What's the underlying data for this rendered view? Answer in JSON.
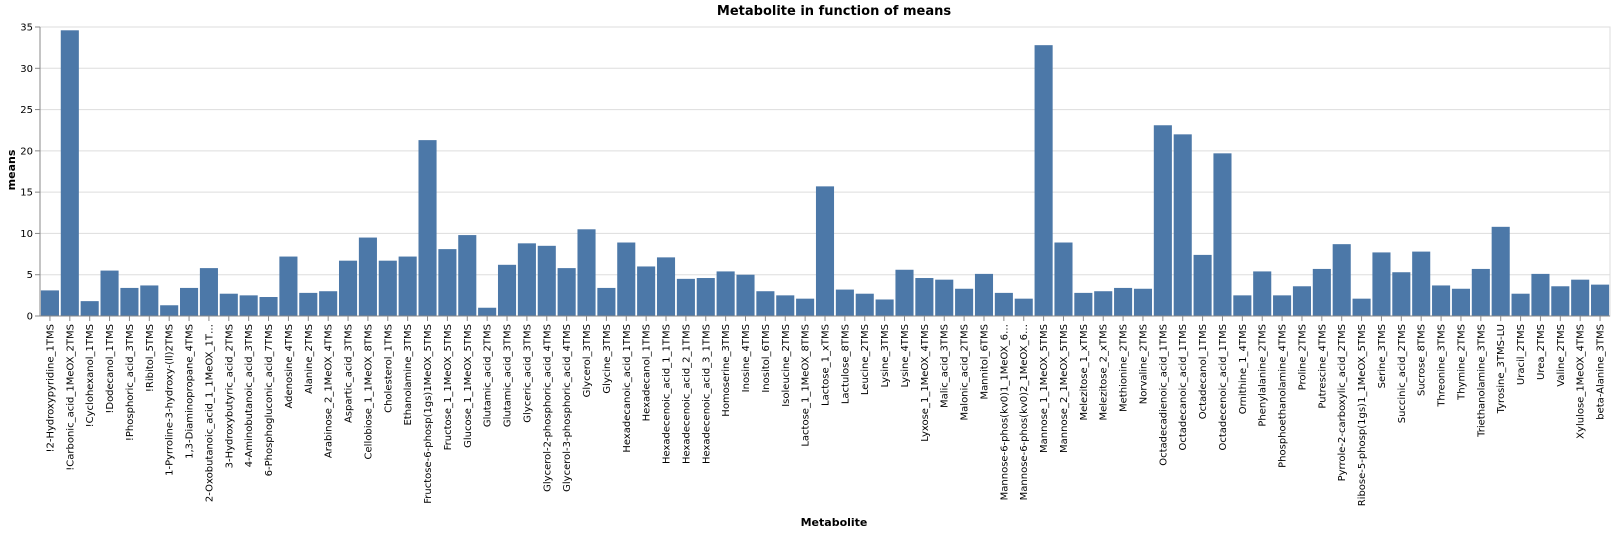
{
  "chart_data": {
    "type": "bar",
    "title": "Metabolite in function of means",
    "xlabel": "Metabolite",
    "ylabel": "means",
    "ylim": [
      0,
      35
    ],
    "yticks": [
      0,
      5,
      10,
      15,
      20,
      25,
      30,
      35
    ],
    "grid": true,
    "bar_color": "#4c78a8",
    "categories": [
      "!2-Hydroxypyridine_1TMS",
      "!Carbonic_acid_1MeOX_2TMS",
      "!Cyclohexanol_1TMS",
      "!Dodecanol_1TMS",
      "!Phosphoric_acid_3TMS",
      "!Ribitol_5TMS",
      "1-Pyrroline-3-hydroxy-(ll)2TMS",
      "1,3-Diaminopropane_4TMS",
      "2-Oxobutanoic_acid_1_1MeOX_1T…",
      "3-Hydroxybutyric_acid_2TMS",
      "4-Aminobutanoic_acid_3TMS",
      "6-Phosphogluconic_acid_7TMS",
      "Adenosine_4TMS",
      "Alanine_2TMS",
      "Arabinose_2_1MeOX_4TMS",
      "Aspartic_acid_3TMS",
      "Cellobiose_1_1MeOX_8TMS",
      "Cholesterol_1TMS",
      "Ethanolamine_3TMS",
      "Fructose-6-phosp(1gs)1MeOX_5TMS",
      "Fructose_1_1MeOX_5TMS",
      "Glucose_1_1MeOX_5TMS",
      "Glutamic_acid_2TMS",
      "Glutamic_acid_3TMS",
      "Glyceric_acid_3TMS",
      "Glycerol-2-phosphoric_acid_4TMS",
      "Glycerol-3-phosphoric_acid_4TMS",
      "Glycerol_3TMS",
      "Glycine_3TMS",
      "Hexadecanoic_acid_1TMS",
      "Hexadecanol_1TMS",
      "Hexadecenoic_acid_1_1TMS",
      "Hexadecenoic_acid_2_1TMS",
      "Hexadecenoic_acid_3_1TMS",
      "Homoserine_3TMS",
      "Inosine_4TMS",
      "Inositol_6TMS",
      "Isoleucine_2TMS",
      "Lactose_1_1MeOX_8TMS",
      "Lactose_1_xTMS",
      "Lactulose_8TMS",
      "Leucine_2TMS",
      "Lysine_3TMS",
      "Lysine_4TMS",
      "Lyxose_1_1MeOX_4TMS",
      "Malic_acid_3TMS",
      "Malonic_acid_2TMS",
      "Mannitol_6TMS",
      "Mannose-6-phos(kv0)1_1MeOX_6…",
      "Mannose-6-phos(kv0)2_1MeOX_6…",
      "Mannose_1_1MeOX_5TMS",
      "Mannose_2_1MeOX_5TMS",
      "Melezitose_1_xTMS",
      "Melezitose_2_xTMS",
      "Methionine_2TMS",
      "Norvaline_2TMS",
      "Octadecadienoic_acid_1TMS",
      "Octadecanoic_acid_1TMS",
      "Octadecanol_1TMS",
      "Octadecenoic_acid_1TMS",
      "Ornithine_1_4TMS",
      "Phenylalanine_2TMS",
      "Phosphoethanolamine_4TMS",
      "Proline_2TMS",
      "Putrescine_4TMS",
      "Pyrrole-2-carboxylic_acid_2TMS",
      "Ribose-5-phosp(1gs)1_1MeOX_5TMS",
      "Serine_3TMS",
      "Succinic_acid_2TMS",
      "Sucrose_8TMS",
      "Threonine_3TMS",
      "Thymine_2TMS",
      "Triethanolamine_3TMS",
      "Tyrosine_3TMS-LU",
      "Uracil_2TMS",
      "Urea_2TMS",
      "Valine_2TMS",
      "Xylulose_1MeOX_4TMS",
      "beta-Alanine_3TMS"
    ],
    "values": [
      3.1,
      34.6,
      1.8,
      5.5,
      3.4,
      3.7,
      1.3,
      3.4,
      5.8,
      2.7,
      2.5,
      2.3,
      7.2,
      2.8,
      3.0,
      6.7,
      9.5,
      6.7,
      7.2,
      21.3,
      8.1,
      9.8,
      1.0,
      6.2,
      8.8,
      8.5,
      5.8,
      10.5,
      3.4,
      8.9,
      6.0,
      7.1,
      4.5,
      4.6,
      5.4,
      5.0,
      3.0,
      2.5,
      2.1,
      15.7,
      3.2,
      2.7,
      2.0,
      5.6,
      4.6,
      4.4,
      3.3,
      5.1,
      2.8,
      2.1,
      32.8,
      8.9,
      2.8,
      3.0,
      3.4,
      3.3,
      23.1,
      22.0,
      7.4,
      19.7,
      2.5,
      5.4,
      2.5,
      3.6,
      5.7,
      8.7,
      2.1,
      7.7,
      5.3,
      7.8,
      3.7,
      3.3,
      5.7,
      10.8,
      2.7,
      5.1,
      3.6,
      4.4,
      3.8
    ]
  }
}
